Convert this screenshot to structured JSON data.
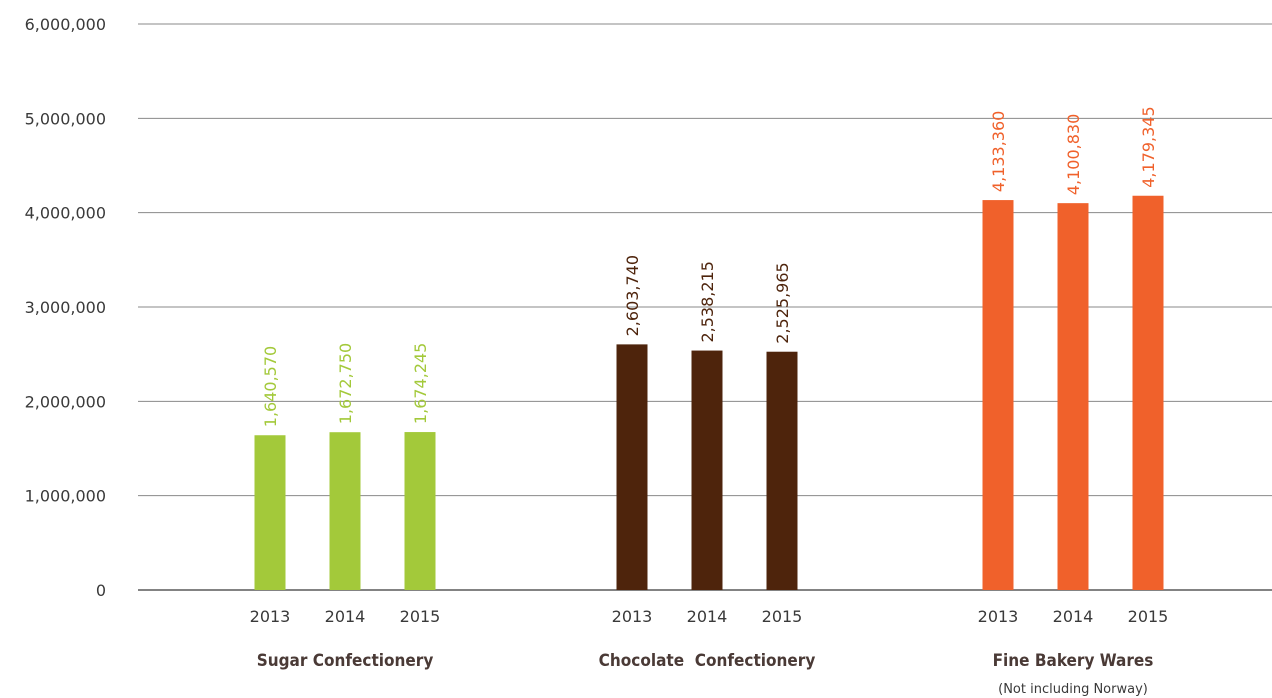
{
  "chart_data": {
    "type": "bar",
    "ylim": [
      0,
      6000000
    ],
    "yticks": [
      "0",
      "1,000,000",
      "2,000,000",
      "3,000,000",
      "4,000,000",
      "5,000,000",
      "6,000,000"
    ],
    "ytick_values": [
      0,
      1000000,
      2000000,
      3000000,
      4000000,
      5000000,
      6000000
    ],
    "grid": true,
    "groups": [
      {
        "label": "Sugar Confectionery",
        "note": "",
        "color": "#a3c93a",
        "bars": [
          {
            "year": "2013",
            "value": 1640570,
            "label": "1,640,570"
          },
          {
            "year": "2014",
            "value": 1672750,
            "label": "1,672,750"
          },
          {
            "year": "2015",
            "value": 1674245,
            "label": "1,674,245"
          }
        ]
      },
      {
        "label": "Chocolate  Confectionery",
        "note": "",
        "color": "#4e240c",
        "bars": [
          {
            "year": "2013",
            "value": 2603740,
            "label": "2,603,740"
          },
          {
            "year": "2014",
            "value": 2538215,
            "label": "2,538,215"
          },
          {
            "year": "2015",
            "value": 2525965,
            "label": "2,525,965"
          }
        ]
      },
      {
        "label": "Fine Bakery Wares",
        "note": "(Not including Norway)",
        "color": "#f0612b",
        "bars": [
          {
            "year": "2013",
            "value": 4133360,
            "label": "4,133,360"
          },
          {
            "year": "2014",
            "value": 4100830,
            "label": "4,100,830"
          },
          {
            "year": "2015",
            "value": 4179345,
            "label": "4,179,345"
          }
        ]
      }
    ]
  }
}
